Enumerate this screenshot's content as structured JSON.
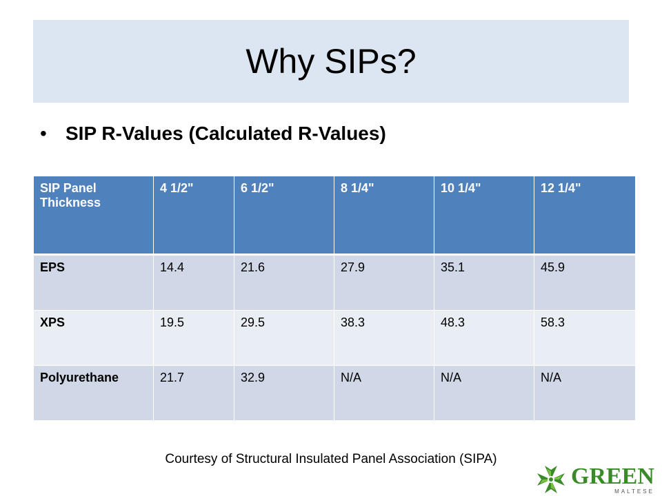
{
  "slide": {
    "title": "Why SIPs?",
    "bullet": "SIP R-Values (Calculated R-Values)",
    "courtesy": "Courtesy of Structural Insulated Panel Association (SIPA)"
  },
  "table": {
    "headers": [
      "SIP Panel Thickness",
      "4 1/2\"",
      "6 1/2\"",
      "8 1/4\"",
      "10 1/4\"",
      "12 1/4\""
    ],
    "rows": [
      [
        "EPS",
        "14.4",
        "21.6",
        "27.9",
        "35.1",
        "45.9"
      ],
      [
        "XPS",
        "19.5",
        "29.5",
        "38.3",
        "48.3",
        "58.3"
      ],
      [
        "Polyurethane",
        "21.7",
        "32.9",
        "N/A",
        "N/A",
        "N/A"
      ]
    ]
  },
  "logo": {
    "brand": "GREEN",
    "sub": "MALTESE",
    "icon": "maltese-cross-icon"
  },
  "colors": {
    "title_bg": "#dce6f2",
    "header_bg": "#4f81bd",
    "row_dark": "#d0d8e8",
    "row_light": "#e9edf4",
    "logo_green": "#3a8a2a"
  }
}
